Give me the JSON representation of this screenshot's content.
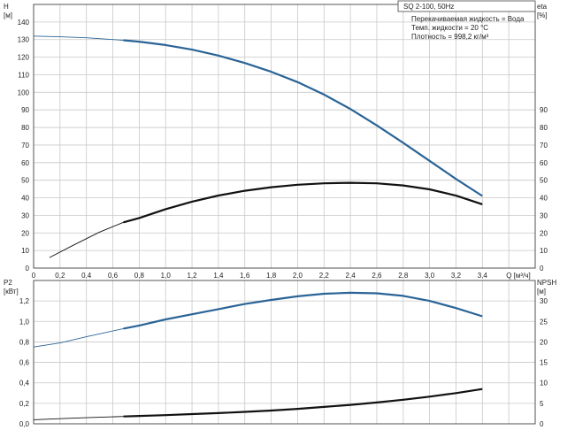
{
  "chart_data": [
    {
      "type": "line",
      "title": "SQ 2-100, 50Hz",
      "legend": [
        "Перекачиваемая жидкость = Вода",
        "Темп. жидкости = 20 °C",
        "Плотность = 998,2 кг/м³"
      ],
      "xlabel": "Q [м³/ч]",
      "xlim": [
        0,
        3.8
      ],
      "xticks": [
        "0",
        "0,2",
        "0,4",
        "0,6",
        "0,8",
        "1,0",
        "1,2",
        "1,4",
        "1,6",
        "1,8",
        "2,0",
        "2,2",
        "2,4",
        "2,6",
        "2,8",
        "3,0",
        "3,2",
        "3,4"
      ],
      "ylabel_left": [
        "H",
        "[м]"
      ],
      "ylim_left": [
        0,
        150
      ],
      "yticks_left": [
        "0",
        "10",
        "20",
        "30",
        "40",
        "50",
        "60",
        "70",
        "80",
        "90",
        "100",
        "110",
        "120",
        "130",
        "140"
      ],
      "ylabel_right": [
        "eta",
        "[%]"
      ],
      "ylim_right": [
        0,
        150
      ],
      "yticks_right": [
        "0",
        "10",
        "20",
        "30",
        "40",
        "50",
        "60",
        "70",
        "80",
        "90"
      ],
      "grid": true,
      "series": [
        {
          "color": "#2a6496",
          "axis": "left",
          "x": [
            0,
            0.2,
            0.4,
            0.6,
            0.68,
            0.8,
            1.0,
            1.2,
            1.4,
            1.6,
            1.8,
            2.0,
            2.2,
            2.4,
            2.6,
            2.8,
            3.0,
            3.2,
            3.4
          ],
          "y": [
            132,
            131.6,
            131,
            130,
            129.6,
            128.8,
            126.9,
            124.3,
            120.9,
            116.7,
            111.7,
            105.8,
            98.7,
            90.5,
            81.2,
            71.3,
            61,
            50.7,
            41
          ]
        },
        {
          "color": "#111111",
          "axis": "right",
          "x": [
            0.12,
            0.3,
            0.5,
            0.68,
            0.8,
            1.0,
            1.2,
            1.4,
            1.6,
            1.8,
            2.0,
            2.2,
            2.4,
            2.6,
            2.8,
            3.0,
            3.2,
            3.4
          ],
          "y": [
            6,
            13,
            20.5,
            26,
            28.5,
            33.5,
            37.8,
            41.3,
            44,
            46,
            47.4,
            48.2,
            48.5,
            48.2,
            47,
            44.8,
            41.2,
            36.3
          ]
        }
      ]
    },
    {
      "type": "line",
      "xlim": [
        0,
        3.8
      ],
      "ylabel_left": [
        "P2",
        "[кВт]"
      ],
      "ylim_left": [
        0,
        1.4
      ],
      "yticks_left": [
        "0,0",
        "0,2",
        "0,4",
        "0,6",
        "0,8",
        "1,0",
        "1,2"
      ],
      "ylabel_right": [
        "NPSH",
        "[м]"
      ],
      "ylim_right": [
        0,
        35
      ],
      "yticks_right": [
        "0",
        "5",
        "10",
        "15",
        "20",
        "25",
        "30"
      ],
      "grid": true,
      "series": [
        {
          "color": "#2a6496",
          "axis": "left",
          "x": [
            0,
            0.2,
            0.4,
            0.68,
            0.8,
            1.0,
            1.2,
            1.4,
            1.6,
            1.8,
            2.0,
            2.2,
            2.4,
            2.6,
            2.8,
            3.0,
            3.2,
            3.4
          ],
          "y": [
            0.75,
            0.79,
            0.85,
            0.93,
            0.96,
            1.02,
            1.07,
            1.12,
            1.17,
            1.21,
            1.245,
            1.27,
            1.28,
            1.275,
            1.25,
            1.2,
            1.13,
            1.05
          ]
        },
        {
          "color": "#111111",
          "axis": "left",
          "x": [
            0,
            0.2,
            0.4,
            0.68,
            0.8,
            1.0,
            1.2,
            1.4,
            1.6,
            1.8,
            2.0,
            2.2,
            2.4,
            2.6,
            2.8,
            3.0,
            3.2,
            3.4
          ],
          "y": [
            0.04,
            0.05,
            0.06,
            0.072,
            0.077,
            0.085,
            0.095,
            0.105,
            0.117,
            0.13,
            0.146,
            0.165,
            0.185,
            0.208,
            0.235,
            0.265,
            0.3,
            0.34
          ]
        }
      ]
    }
  ]
}
